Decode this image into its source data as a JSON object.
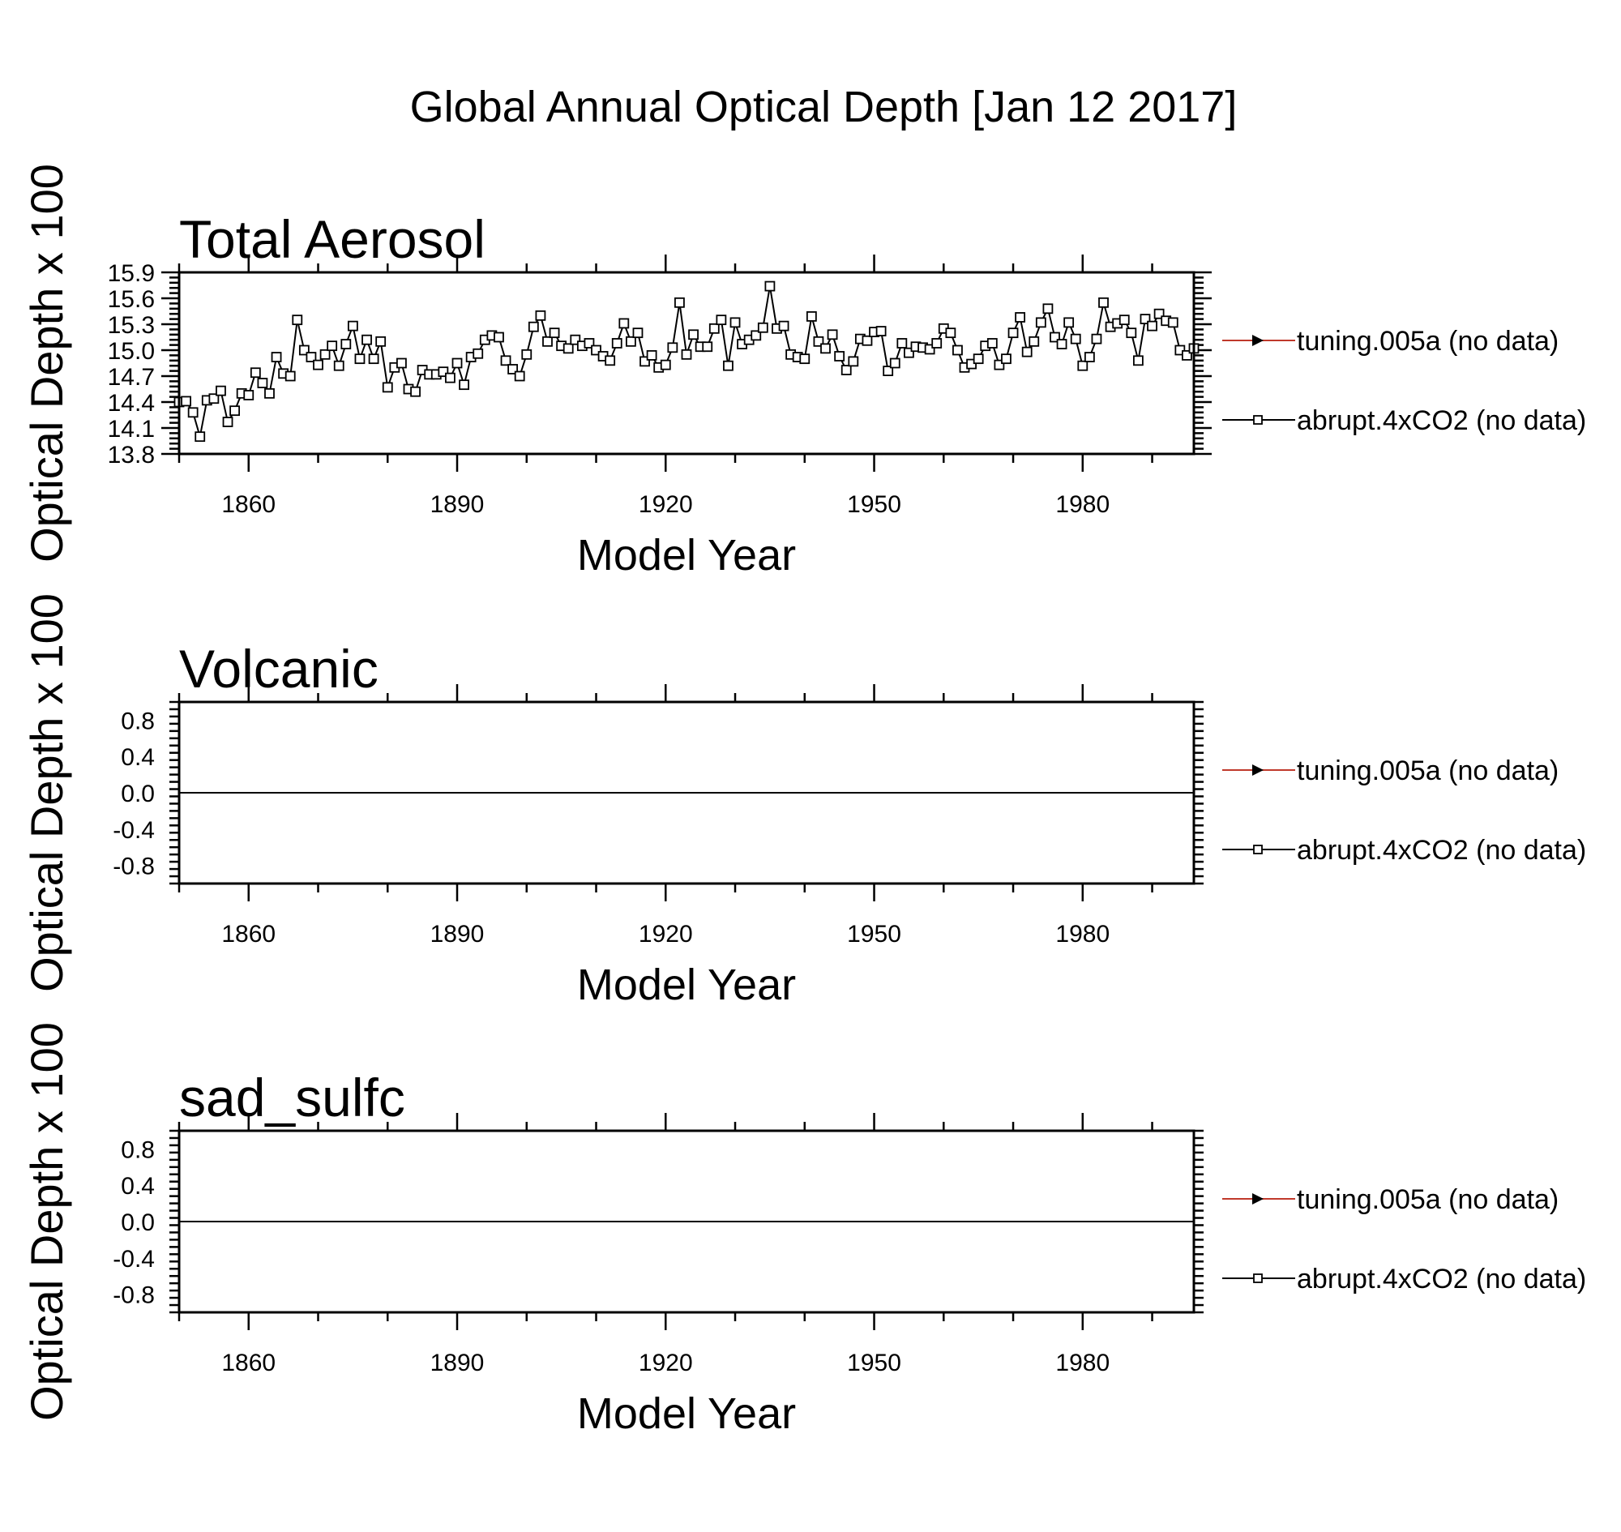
{
  "figure_title": "Global Annual Optical Depth [Jan 12 2017]",
  "chart_data": [
    {
      "type": "line",
      "title": "Total Aerosol",
      "xlabel": "Model Year",
      "ylabel": "Optical Depth x 100",
      "xlim": [
        1850,
        1996
      ],
      "ylim": [
        13.8,
        15.9
      ],
      "xticks": [
        1860,
        1890,
        1920,
        1950,
        1980
      ],
      "yticks": [
        "13.8",
        "14.1",
        "14.4",
        "14.7",
        "15.0",
        "15.3",
        "15.6",
        "15.9"
      ],
      "zero_line": false,
      "legend_position": "right",
      "legend": [
        {
          "label": "tuning.005a (no data)",
          "color": "#c0392b",
          "marker": "triangle"
        },
        {
          "label": "abrupt.4xCO2 (no data)",
          "color": "#000000",
          "marker": "square"
        }
      ],
      "series": [
        {
          "name": "abrupt.4xCO2 (no data)",
          "color": "#000000",
          "marker": "square",
          "x_start": 1850,
          "x_step": 1,
          "values": [
            14.4,
            14.41,
            14.28,
            14.0,
            14.42,
            14.44,
            14.53,
            14.17,
            14.3,
            14.5,
            14.48,
            14.74,
            14.62,
            14.5,
            14.92,
            14.73,
            14.7,
            15.35,
            15.0,
            14.92,
            14.83,
            14.95,
            15.05,
            14.82,
            15.07,
            15.28,
            14.9,
            15.12,
            14.9,
            15.1,
            14.57,
            14.8,
            14.85,
            14.55,
            14.52,
            14.77,
            14.72,
            14.72,
            14.75,
            14.68,
            14.85,
            14.6,
            14.92,
            14.96,
            15.12,
            15.17,
            15.15,
            14.88,
            14.78,
            14.7,
            14.95,
            15.27,
            15.4,
            15.1,
            15.2,
            15.05,
            15.02,
            15.12,
            15.05,
            15.08,
            15.0,
            14.93,
            14.88,
            15.08,
            15.31,
            15.1,
            15.2,
            14.87,
            14.94,
            14.8,
            14.83,
            15.03,
            15.55,
            14.95,
            15.18,
            15.04,
            15.04,
            15.25,
            15.35,
            14.82,
            15.32,
            15.07,
            15.12,
            15.17,
            15.26,
            15.74,
            15.25,
            15.28,
            14.95,
            14.92,
            14.9,
            15.39,
            15.1,
            15.02,
            15.18,
            14.93,
            14.77,
            14.87,
            15.13,
            15.11,
            15.21,
            15.22,
            14.76,
            14.85,
            15.08,
            14.97,
            15.04,
            15.03,
            15.01,
            15.08,
            15.25,
            15.2,
            15.0,
            14.8,
            14.84,
            14.9,
            15.05,
            15.08,
            14.83,
            14.9,
            15.2,
            15.38,
            14.98,
            15.1,
            15.32,
            15.48,
            15.15,
            15.07,
            15.32,
            15.13,
            14.82,
            14.92,
            15.13,
            15.55,
            15.27,
            15.31,
            15.35,
            15.2,
            14.88,
            15.36,
            15.28,
            15.42,
            15.34,
            15.32,
            15.0,
            14.94,
            15.02
          ]
        }
      ]
    },
    {
      "type": "line",
      "title": "Volcanic",
      "xlabel": "Model Year",
      "ylabel": "Optical Depth x 100",
      "xlim": [
        1850,
        1996
      ],
      "ylim": [
        -1.0,
        1.0
      ],
      "xticks": [
        1860,
        1890,
        1920,
        1950,
        1980
      ],
      "yticks": [
        "-0.8",
        "-0.4",
        "0.0",
        "0.4",
        "0.8"
      ],
      "zero_line": true,
      "legend_position": "right",
      "legend": [
        {
          "label": "tuning.005a (no data)",
          "color": "#c0392b",
          "marker": "triangle"
        },
        {
          "label": "abrupt.4xCO2 (no data)",
          "color": "#000000",
          "marker": "square"
        }
      ],
      "series": []
    },
    {
      "type": "line",
      "title": "sad_sulfc",
      "xlabel": "Model Year",
      "ylabel": "Optical Depth x 100",
      "xlim": [
        1850,
        1996
      ],
      "ylim": [
        -1.0,
        1.0
      ],
      "xticks": [
        1860,
        1890,
        1920,
        1950,
        1980
      ],
      "yticks": [
        "-0.8",
        "-0.4",
        "0.0",
        "0.4",
        "0.8"
      ],
      "zero_line": true,
      "legend_position": "right",
      "legend": [
        {
          "label": "tuning.005a (no data)",
          "color": "#c0392b",
          "marker": "triangle"
        },
        {
          "label": "abrupt.4xCO2 (no data)",
          "color": "#000000",
          "marker": "square"
        }
      ],
      "series": []
    }
  ]
}
